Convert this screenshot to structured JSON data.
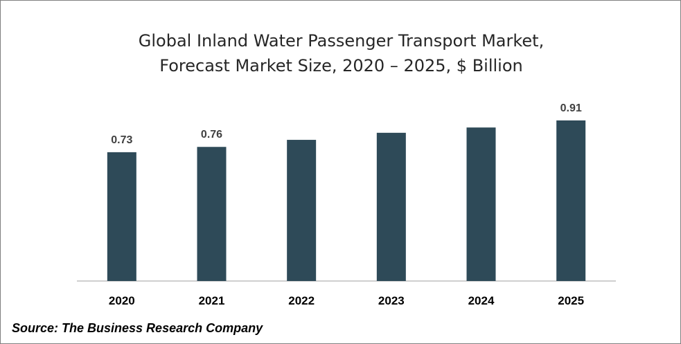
{
  "chart_data": {
    "type": "bar",
    "title_lines": [
      "Global Inland Water Passenger Transport Market,",
      "Forecast Market Size, 2020 – 2025, $ Billion"
    ],
    "categories": [
      "2020",
      "2021",
      "2022",
      "2023",
      "2024",
      "2025"
    ],
    "values": [
      0.73,
      0.76,
      0.8,
      0.84,
      0.87,
      0.91
    ],
    "data_labels": [
      "0.73",
      "0.76",
      "",
      "",
      "",
      "0.91"
    ],
    "bar_color": "#2e4a58",
    "axis_color": "#bfbfbf",
    "xlabel": "",
    "ylabel": "",
    "grid": false,
    "legend": "none"
  },
  "source": "Source: The Business Research Company"
}
